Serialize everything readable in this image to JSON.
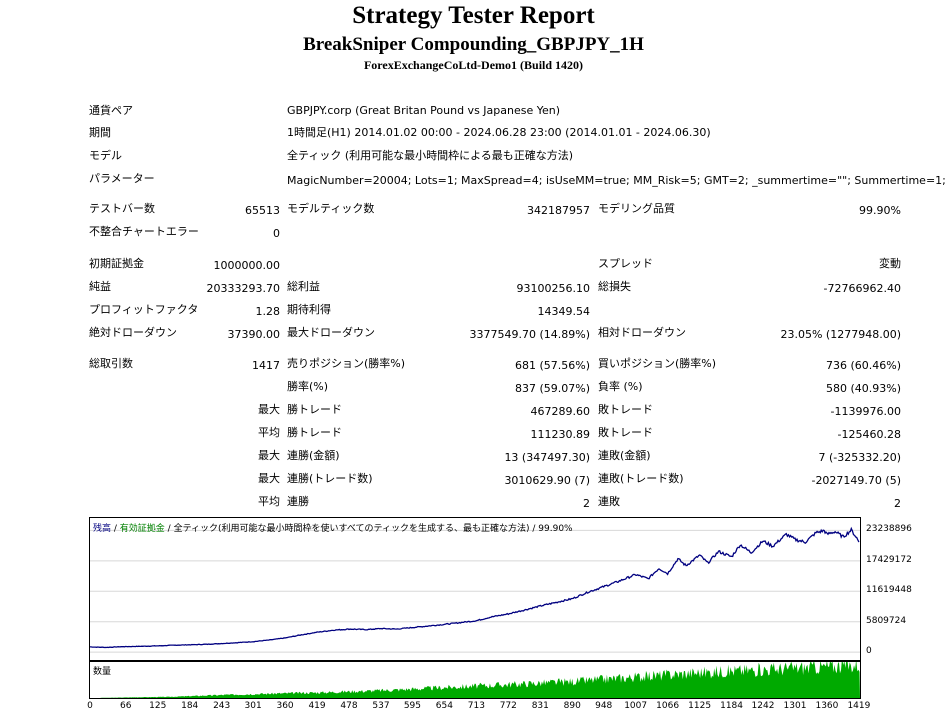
{
  "header": {
    "title": "Strategy Tester Report",
    "subtitle": "BreakSniper Compounding_GBPJPY_1H",
    "build": "ForexExchangeCoLtd-Demo1 (Build 1420)"
  },
  "info": {
    "symbol_label": "通貨ペア",
    "symbol_value": "GBPJPY.corp (Great Britan Pound vs Japanese Yen)",
    "period_label": "期間",
    "period_value": "1時間足(H1) 2014.01.02 00:00 - 2024.06.28 23:00 (2014.01.01 - 2024.06.30)",
    "model_label": "モデル",
    "model_value": "全ティック (利用可能な最小時間枠による最も正確な方法)",
    "params_label": "パラメーター",
    "params_value": "MagicNumber=20004; Lots=1; MaxSpread=4; isUseMM=true; MM_Risk=5; GMT=2; _summertime=\"\"; Summertime=1;"
  },
  "stats": {
    "bars_label": "テストバー数",
    "bars_value": "65513",
    "ticks_label": "モデルティック数",
    "ticks_value": "342187957",
    "quality_label": "モデリング品質",
    "quality_value": "99.90%",
    "mismatch_label": "不整合チャートエラー",
    "mismatch_value": "0",
    "deposit_label": "初期証拠金",
    "deposit_value": "1000000.00",
    "spread_label": "スプレッド",
    "spread_value": "変動",
    "netprofit_label": "純益",
    "netprofit_value": "20333293.70",
    "grossprofit_label": "総利益",
    "grossprofit_value": "93100256.10",
    "grossloss_label": "総損失",
    "grossloss_value": "-72766962.40",
    "pf_label": "プロフィットファクタ",
    "pf_value": "1.28",
    "expected_label": "期待利得",
    "expected_value": "14349.54",
    "absdd_label": "絶対ドローダウン",
    "absdd_value": "37390.00",
    "maxdd_label": "最大ドローダウン",
    "maxdd_value": "3377549.70 (14.89%)",
    "reldd_label": "相対ドローダウン",
    "reldd_value": "23.05% (1277948.00)",
    "trades_label": "総取引数",
    "trades_value": "1417",
    "short_label": "売りポジション(勝率%)",
    "short_value": "681 (57.56%)",
    "long_label": "買いポジション(勝率%)",
    "long_value": "736 (60.46%)",
    "win_label": "勝率(%)",
    "win_value": "837 (59.07%)",
    "loss_label": "負率 (%)",
    "loss_value": "580 (40.93%)",
    "max_word": "最大",
    "avg_word": "平均",
    "largest_win_label": "勝トレード",
    "largest_win_value": "467289.60",
    "largest_loss_label": "敗トレード",
    "largest_loss_value": "-1139976.00",
    "avg_win_label": "勝トレード",
    "avg_win_value": "111230.89",
    "avg_loss_label": "敗トレード",
    "avg_loss_value": "-125460.28",
    "consec_win_money_label": "連勝(金額)",
    "consec_win_money_value": "13 (347497.30)",
    "consec_loss_money_label": "連敗(金額)",
    "consec_loss_money_value": "7 (-325332.20)",
    "consec_profit_label": "連勝(トレード数)",
    "consec_profit_value": "3010629.90 (7)",
    "consec_lossamt_label": "連敗(トレード数)",
    "consec_lossamt_value": "-2027149.70 (5)",
    "avg_consec_win_label": "連勝",
    "avg_consec_win_value": "2",
    "avg_consec_loss_label": "連敗",
    "avg_consec_loss_value": "2"
  },
  "chart_data": {
    "type": "line",
    "legend_balance": "残高",
    "legend_sep1": " / ",
    "legend_equity": "有効証拠金",
    "legend_sep2": " / ",
    "legend_model": "全ティック(利用可能な最小時間枠を使いすべてのティックを生成する、最も正確な方法)",
    "legend_sep3": " / ",
    "legend_quality": "99.90%",
    "volume_label": "数量",
    "y_ticks": [
      "23238896",
      "17429172",
      "11619448",
      "5809724",
      "0"
    ],
    "y_tick_values": [
      23238896,
      17429172,
      11619448,
      5809724,
      0
    ],
    "x_ticks": [
      "0",
      "66",
      "125",
      "184",
      "243",
      "301",
      "360",
      "419",
      "478",
      "537",
      "595",
      "654",
      "713",
      "772",
      "831",
      "890",
      "948",
      "1007",
      "1066",
      "1125",
      "1184",
      "1242",
      "1301",
      "1360",
      "1419"
    ],
    "x_tick_values": [
      0,
      66,
      125,
      184,
      243,
      301,
      360,
      419,
      478,
      537,
      595,
      654,
      713,
      772,
      831,
      890,
      948,
      1007,
      1066,
      1125,
      1184,
      1242,
      1301,
      1360,
      1419
    ],
    "xlim": [
      0,
      1421
    ],
    "ylim": [
      -1500000,
      25600000
    ],
    "series": [
      {
        "name": "残高",
        "color": "#000080",
        "x": [
          0,
          30,
          60,
          90,
          125,
          150,
          184,
          215,
          243,
          270,
          301,
          330,
          360,
          390,
          419,
          450,
          478,
          510,
          537,
          565,
          595,
          625,
          654,
          680,
          713,
          740,
          772,
          800,
          831,
          860,
          890,
          920,
          948,
          975,
          1007,
          1030,
          1050,
          1066,
          1085,
          1100,
          1125,
          1140,
          1160,
          1184,
          1200,
          1220,
          1242,
          1260,
          1285,
          1301,
          1320,
          1340,
          1355,
          1360,
          1375,
          1390,
          1405,
          1415,
          1419
        ],
        "y": [
          1000000,
          900000,
          1050000,
          1100000,
          1200000,
          1300000,
          1400000,
          1500000,
          1650000,
          1800000,
          2000000,
          2300000,
          2700000,
          3300000,
          3800000,
          4200000,
          4400000,
          4300000,
          4500000,
          4400000,
          4700000,
          5000000,
          5300000,
          5600000,
          6000000,
          6700000,
          7300000,
          8000000,
          8800000,
          9500000,
          10200000,
          11500000,
          12500000,
          13500000,
          14800000,
          14000000,
          16000000,
          15000000,
          17800000,
          16500000,
          18500000,
          17000000,
          19200000,
          18200000,
          20500000,
          19000000,
          21200000,
          20200000,
          22500000,
          21500000,
          21000000,
          22800000,
          23200000,
          22500000,
          23000000,
          22000000,
          23300000,
          21800000,
          21000000
        ]
      }
    ],
    "volume": {
      "name": "数量",
      "color": "#00aa00",
      "x": [
        0,
        150,
        243,
        301,
        419,
        537,
        713,
        890,
        1007,
        1125,
        1242,
        1360,
        1419
      ],
      "y": [
        0,
        0.4,
        1,
        1.3,
        1.8,
        2.5,
        4,
        5.5,
        7,
        8.5,
        9.5,
        10.5,
        11
      ]
    }
  }
}
